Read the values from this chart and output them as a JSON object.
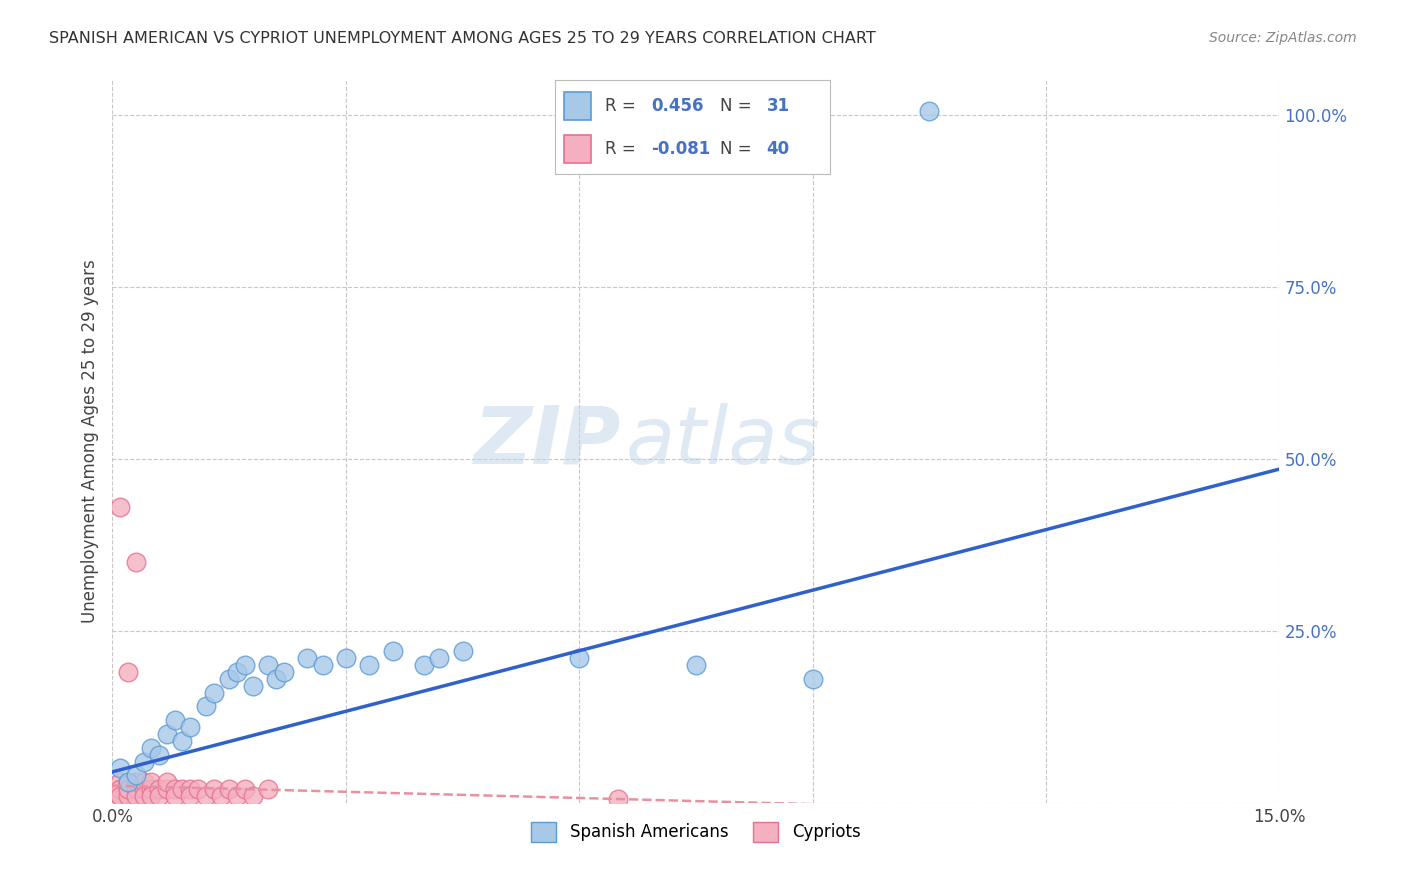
{
  "title": "SPANISH AMERICAN VS CYPRIOT UNEMPLOYMENT AMONG AGES 25 TO 29 YEARS CORRELATION CHART",
  "source": "Source: ZipAtlas.com",
  "ylabel": "Unemployment Among Ages 25 to 29 years",
  "xlim": [
    0.0,
    0.15
  ],
  "ylim": [
    0.0,
    1.05
  ],
  "xticks": [
    0.0,
    0.03,
    0.06,
    0.09,
    0.12,
    0.15
  ],
  "xticklabels": [
    "0.0%",
    "",
    "",
    "",
    "",
    "15.0%"
  ],
  "ytick_positions": [
    0.0,
    0.25,
    0.5,
    0.75,
    1.0
  ],
  "ytick_labels": [
    "",
    "25.0%",
    "50.0%",
    "75.0%",
    "100.0%"
  ],
  "background_color": "#ffffff",
  "grid_color": "#c8c8c8",
  "watermark_zip": "ZIP",
  "watermark_atlas": "atlas",
  "sa_color": "#a8c8e8",
  "cy_color": "#f4b0c0",
  "sa_edge": "#5b9bd5",
  "cy_edge": "#e87090",
  "trend_blue": "#3060cc",
  "trend_pink": "#e890a0",
  "legend_R1": "0.456",
  "legend_N1": "31",
  "legend_R2": "-0.081",
  "legend_N2": "40",
  "spanish_americans_x": [
    0.001,
    0.002,
    0.003,
    0.004,
    0.005,
    0.006,
    0.007,
    0.008,
    0.009,
    0.01,
    0.012,
    0.013,
    0.015,
    0.016,
    0.017,
    0.018,
    0.02,
    0.021,
    0.022,
    0.025,
    0.027,
    0.03,
    0.033,
    0.036,
    0.04,
    0.042,
    0.045,
    0.06,
    0.075,
    0.09,
    0.105
  ],
  "spanish_americans_y": [
    0.05,
    0.03,
    0.04,
    0.06,
    0.08,
    0.07,
    0.1,
    0.12,
    0.09,
    0.11,
    0.14,
    0.16,
    0.18,
    0.19,
    0.2,
    0.17,
    0.2,
    0.18,
    0.19,
    0.21,
    0.2,
    0.21,
    0.2,
    0.22,
    0.2,
    0.21,
    0.22,
    0.21,
    0.2,
    0.18,
    1.005
  ],
  "cypriots_x": [
    0.001,
    0.001,
    0.001,
    0.001,
    0.001,
    0.002,
    0.002,
    0.002,
    0.002,
    0.003,
    0.003,
    0.003,
    0.004,
    0.004,
    0.004,
    0.005,
    0.005,
    0.005,
    0.006,
    0.006,
    0.007,
    0.007,
    0.008,
    0.008,
    0.009,
    0.01,
    0.01,
    0.011,
    0.012,
    0.013,
    0.014,
    0.015,
    0.016,
    0.017,
    0.018,
    0.02,
    0.002,
    0.003,
    0.065,
    0.001
  ],
  "cypriots_y": [
    0.01,
    0.02,
    0.03,
    0.02,
    0.01,
    0.02,
    0.03,
    0.01,
    0.02,
    0.02,
    0.03,
    0.01,
    0.02,
    0.03,
    0.01,
    0.02,
    0.03,
    0.01,
    0.02,
    0.01,
    0.02,
    0.03,
    0.02,
    0.01,
    0.02,
    0.02,
    0.01,
    0.02,
    0.01,
    0.02,
    0.01,
    0.02,
    0.01,
    0.02,
    0.01,
    0.02,
    0.19,
    0.35,
    0.005,
    0.43
  ],
  "sa_trend_x": [
    0.0,
    0.15
  ],
  "sa_trend_y": [
    0.045,
    0.485
  ],
  "cy_trend_x": [
    0.0,
    0.15
  ],
  "cy_trend_y": [
    0.025,
    -0.02
  ]
}
